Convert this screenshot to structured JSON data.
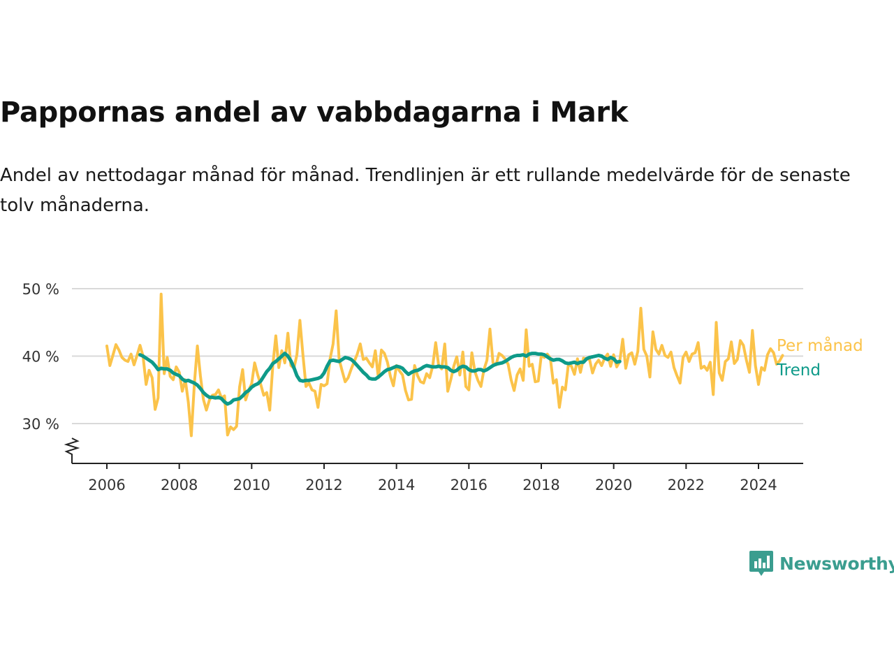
{
  "header": {
    "title": "Pappornas andel av vabbdagarna i Mark",
    "subtitle": "Andel av nettodagar månad för månad. Trendlinjen är ett rullande medelvärde för de senaste tolv månaderna."
  },
  "brand": {
    "name": "Newsworthy",
    "icon": "newsworthy-logo-icon",
    "color": "#3a9d8f"
  },
  "chart_data": {
    "type": "line",
    "ylim": [
      24,
      50
    ],
    "xlim": [
      2005.9,
      2025.2
    ],
    "yticks": [
      30,
      40,
      50
    ],
    "ytick_labels": [
      "30 %",
      "40 %",
      "50 %"
    ],
    "xticks": [
      2006,
      2008,
      2010,
      2012,
      2014,
      2016,
      2018,
      2020,
      2022,
      2024
    ],
    "xtick_labels": [
      "2006",
      "2008",
      "2010",
      "2012",
      "2014",
      "2016",
      "2018",
      "2020",
      "2022",
      "2024"
    ],
    "grid": true,
    "legend_placement": "right-end-of-lines",
    "series": [
      {
        "name": "Per månad",
        "color": "#fbc34a",
        "start": 2006.0,
        "step": 0.08333,
        "values": [
          41.5,
          38.6,
          40.1,
          41.7,
          40.9,
          39.8,
          39.4,
          39.2,
          40.3,
          38.7,
          40.1,
          41.6,
          40.0,
          35.8,
          37.9,
          36.8,
          32.1,
          33.8,
          49.2,
          37.4,
          39.8,
          37.0,
          36.5,
          38.4,
          37.6,
          34.8,
          36.5,
          33.2,
          28.2,
          35.9,
          41.5,
          37.1,
          33.6,
          32.0,
          33.5,
          34.2,
          34.3,
          35.0,
          33.8,
          34.1,
          28.3,
          29.5,
          29.1,
          29.6,
          35.4,
          38.0,
          33.5,
          34.9,
          35.9,
          39.0,
          37.2,
          35.8,
          34.2,
          34.6,
          32.0,
          38.6,
          43.0,
          38.3,
          40.8,
          39.0,
          43.4,
          38.6,
          38.2,
          40.2,
          45.3,
          40.1,
          35.5,
          36.0,
          35.0,
          34.8,
          32.4,
          35.8,
          35.6,
          35.9,
          39.6,
          41.8,
          46.7,
          39.5,
          37.8,
          36.2,
          36.8,
          38.1,
          39.2,
          40.3,
          41.8,
          39.5,
          39.7,
          39.0,
          38.4,
          40.8,
          36.8,
          40.9,
          40.4,
          39.1,
          37.0,
          35.6,
          38.6,
          37.8,
          37.2,
          34.9,
          33.5,
          33.6,
          38.6,
          37.1,
          36.2,
          36.0,
          37.4,
          36.8,
          38.5,
          42.0,
          38.6,
          38.1,
          41.8,
          34.8,
          36.5,
          38.5,
          39.9,
          37.2,
          40.6,
          35.5,
          35.0,
          40.5,
          37.7,
          36.4,
          35.5,
          38.0,
          39.4,
          44.0,
          39.0,
          38.7,
          40.4,
          40.1,
          39.6,
          38.8,
          36.5,
          34.9,
          37.2,
          38.1,
          36.4,
          43.9,
          38.5,
          38.8,
          36.2,
          36.3,
          40.1,
          39.8,
          40.3,
          39.7,
          36.0,
          36.5,
          32.4,
          35.4,
          35.0,
          38.8,
          38.5,
          37.3,
          39.6,
          37.6,
          39.7,
          39.6,
          39.5,
          37.5,
          38.8,
          39.4,
          38.6,
          39.7,
          40.3,
          38.5,
          40.2,
          38.4,
          39.2,
          42.5,
          38.2,
          40.2,
          40.5,
          38.8,
          40.7,
          47.1,
          41.0,
          40.0,
          36.9,
          43.6,
          41.0,
          40.3,
          41.6,
          40.1,
          39.8,
          40.6,
          38.3,
          37.1,
          36.0,
          39.8,
          40.6,
          39.2,
          40.3,
          40.5,
          42.0,
          38.2,
          38.5,
          37.9,
          39.1,
          34.3,
          45.0,
          37.5,
          36.4,
          39.2,
          39.6,
          42.1,
          38.9,
          39.5,
          42.3,
          41.6,
          39.4,
          37.6,
          43.8,
          38.6,
          35.8,
          38.3,
          37.9,
          40.2,
          41.1,
          40.5,
          38.8,
          39.3,
          40.1
        ]
      },
      {
        "name": "Trend",
        "color": "#0e9a89",
        "start": 2006.9167,
        "step": 0.08333,
        "values": [
          40.2,
          40.0,
          39.7,
          39.4,
          39.1,
          38.6,
          38.0,
          38.2,
          38.1,
          38.1,
          37.9,
          37.5,
          37.3,
          37.1,
          36.6,
          36.3,
          36.4,
          36.2,
          36.0,
          35.7,
          35.2,
          34.6,
          34.2,
          33.9,
          33.9,
          33.8,
          33.9,
          33.7,
          33.2,
          32.9,
          33.1,
          33.5,
          33.6,
          33.7,
          34.1,
          34.6,
          34.9,
          35.4,
          35.7,
          35.9,
          36.3,
          37.0,
          37.7,
          38.2,
          38.9,
          39.2,
          39.6,
          40.0,
          40.4,
          40.0,
          39.3,
          38.3,
          37.1,
          36.4,
          36.3,
          36.4,
          36.4,
          36.5,
          36.6,
          36.7,
          36.9,
          37.5,
          38.5,
          39.3,
          39.4,
          39.3,
          39.2,
          39.5,
          39.8,
          39.7,
          39.5,
          39.1,
          38.6,
          38.1,
          37.6,
          37.2,
          36.7,
          36.6,
          36.6,
          36.9,
          37.3,
          37.7,
          38.0,
          38.1,
          38.3,
          38.5,
          38.4,
          38.2,
          37.7,
          37.3,
          37.6,
          37.8,
          37.9,
          38.1,
          38.4,
          38.6,
          38.5,
          38.4,
          38.4,
          38.5,
          38.4,
          38.4,
          38.3,
          37.9,
          37.7,
          37.9,
          38.3,
          38.5,
          38.4,
          38.0,
          37.8,
          37.8,
          38.0,
          38.0,
          37.8,
          38.0,
          38.3,
          38.6,
          38.8,
          38.9,
          39.0,
          39.2,
          39.5,
          39.8,
          40.0,
          40.1,
          40.1,
          40.2,
          40.0,
          40.3,
          40.4,
          40.4,
          40.3,
          40.3,
          40.2,
          39.9,
          39.6,
          39.4,
          39.5,
          39.5,
          39.3,
          39.0,
          38.9,
          39.0,
          39.1,
          38.9,
          39.1,
          39.1,
          39.6,
          39.8,
          39.9,
          40.0,
          40.1,
          40.0,
          39.7,
          39.5,
          39.8,
          39.6,
          39.1,
          39.2
        ]
      }
    ]
  }
}
